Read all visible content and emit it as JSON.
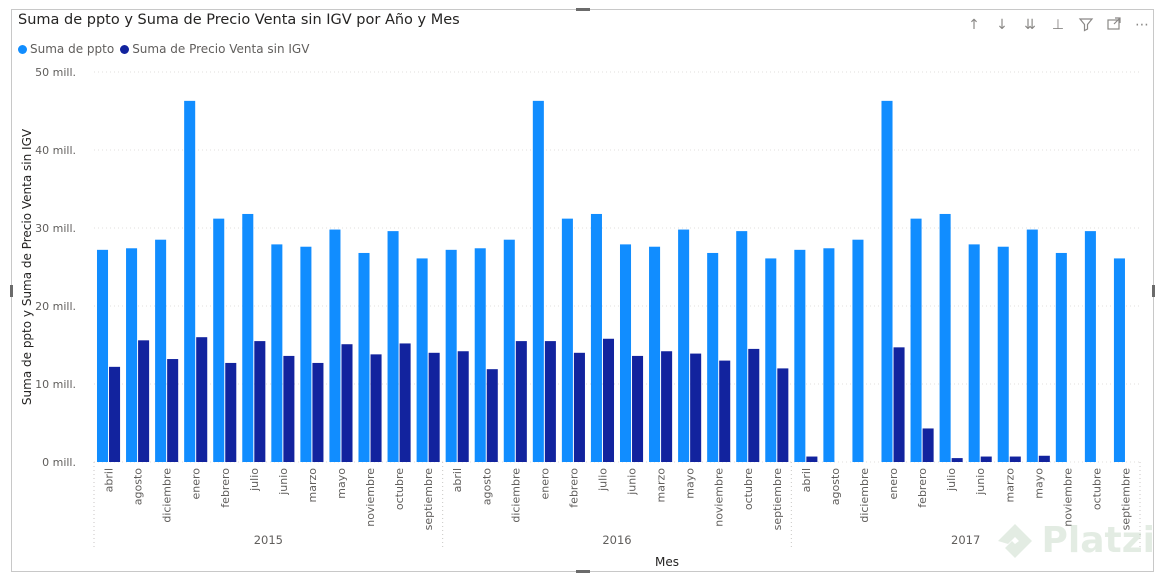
{
  "title": "Suma de ppto y Suma de Precio Venta sin IGV por Año y Mes",
  "legend": [
    {
      "name": "Suma de ppto",
      "color": "#118DFF"
    },
    {
      "name": "Suma de Precio Venta sin IGV",
      "color": "#12239E"
    }
  ],
  "toolbar": [
    "arrow-up-icon",
    "arrow-down-icon",
    "double-arrow-down-icon",
    "expand-hierarchy-icon",
    "filter-icon",
    "focus-mode-icon",
    "more-options-icon"
  ],
  "watermark": "Platzi",
  "chart_data": {
    "type": "bar",
    "xlabel": "Mes",
    "ylabel": "Suma de ppto y Suma de Precio Venta sin IGV",
    "ylim": [
      0,
      50
    ],
    "yticks": [
      0,
      10,
      20,
      30,
      40,
      50
    ],
    "ytick_labels": [
      "0 mill.",
      "10 mill.",
      "20 mill.",
      "30 mill.",
      "40 mill.",
      "50 mill."
    ],
    "grid": true,
    "legend_position": "top-left",
    "groups": [
      {
        "year": "2015",
        "months": [
          "abril",
          "agosto",
          "diciembre",
          "enero",
          "febrero",
          "julio",
          "junio",
          "marzo",
          "mayo",
          "noviembre",
          "octubre",
          "septiembre"
        ]
      },
      {
        "year": "2016",
        "months": [
          "abril",
          "agosto",
          "diciembre",
          "enero",
          "febrero",
          "julio",
          "junio",
          "marzo",
          "mayo",
          "noviembre",
          "octubre",
          "septiembre"
        ]
      },
      {
        "year": "2017",
        "months": [
          "abril",
          "agosto",
          "diciembre",
          "enero",
          "febrero",
          "julio",
          "junio",
          "marzo",
          "mayo",
          "noviembre",
          "octubre",
          "septiembre"
        ]
      }
    ],
    "series": [
      {
        "name": "Suma de ppto",
        "color": "#118DFF",
        "values": [
          27.2,
          27.4,
          28.5,
          46.3,
          31.2,
          31.8,
          27.9,
          27.6,
          29.8,
          26.8,
          29.6,
          26.1,
          27.2,
          27.4,
          28.5,
          46.3,
          31.2,
          31.8,
          27.9,
          27.6,
          29.8,
          26.8,
          29.6,
          26.1,
          27.2,
          27.4,
          28.5,
          46.3,
          31.2,
          31.8,
          27.9,
          27.6,
          29.8,
          26.8,
          29.6,
          26.1
        ]
      },
      {
        "name": "Suma de Precio Venta sin IGV",
        "color": "#12239E",
        "values": [
          12.2,
          15.6,
          13.2,
          16.0,
          12.7,
          15.5,
          13.6,
          12.7,
          15.1,
          13.8,
          15.2,
          14.0,
          14.2,
          11.9,
          15.5,
          15.5,
          14.0,
          15.8,
          13.6,
          14.2,
          13.9,
          13.0,
          14.5,
          12.0,
          0.7,
          0,
          0,
          14.7,
          4.3,
          0.5,
          0.7,
          0.7,
          0.8,
          0,
          0,
          0
        ]
      }
    ]
  }
}
